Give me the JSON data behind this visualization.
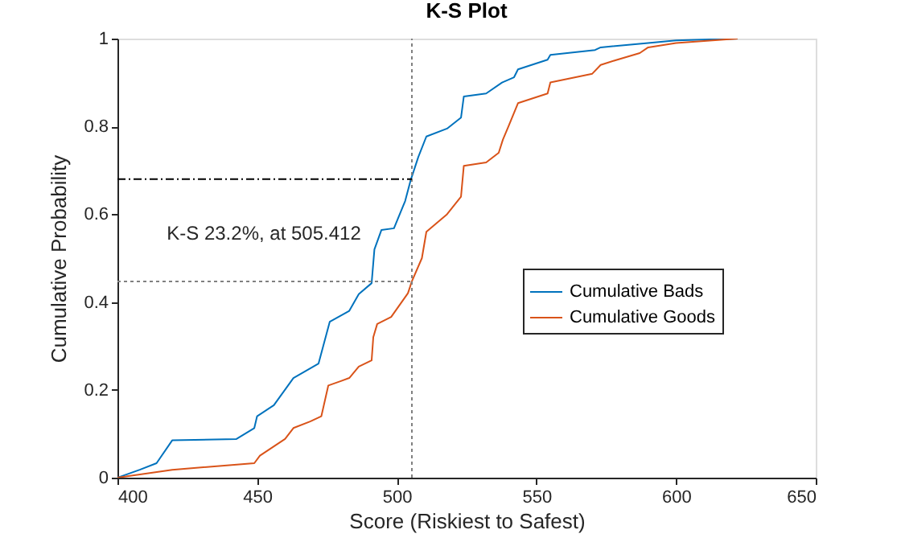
{
  "chart_data": {
    "type": "line",
    "title": "K-S Plot",
    "xlabel": "Score (Riskiest to Safest)",
    "ylabel": "Cumulative Probability",
    "xlim": [
      400,
      650
    ],
    "xticks": [
      400,
      450,
      500,
      550,
      600,
      650
    ],
    "ylim": [
      0,
      1
    ],
    "yticks": [
      0,
      0.2,
      0.4,
      0.6,
      0.8,
      1
    ],
    "grid": false,
    "legend": "right",
    "line_style": "solid",
    "marker": "none",
    "annotations": [
      "K-S 23.2%, at 505.412"
    ],
    "ref_lines": [
      {
        "axis": "x",
        "value": 505.412,
        "color": "#808080",
        "line_style": "dotted"
      },
      {
        "axis": "y",
        "value": 0.68,
        "color": "#000000",
        "line_style": "dashed"
      },
      {
        "axis": "y",
        "value": 0.447,
        "color": "#808080",
        "line_style": "dotted"
      }
    ],
    "series": [
      {
        "name": "Cumulative Bads",
        "color": "#0072bd",
        "x": [
          400,
          408,
          414,
          419.6,
          442.6,
          449,
          450,
          456,
          463,
          472,
          476,
          483,
          486.4,
          491,
          492,
          494.5,
          499,
          503,
          505,
          507.7,
          510.6,
          518,
          523,
          524,
          532,
          537.7,
          542,
          543.4,
          554,
          555,
          571,
          573,
          590,
          600,
          622
        ],
        "values": [
          0,
          0.018,
          0.033,
          0.085,
          0.088,
          0.113,
          0.14,
          0.165,
          0.227,
          0.26,
          0.355,
          0.38,
          0.418,
          0.443,
          0.52,
          0.564,
          0.568,
          0.63,
          0.678,
          0.73,
          0.777,
          0.795,
          0.82,
          0.868,
          0.875,
          0.9,
          0.912,
          0.93,
          0.952,
          0.963,
          0.974,
          0.98,
          0.99,
          0.996,
          1
        ]
      },
      {
        "name": "Cumulative Goods",
        "color": "#d95319",
        "x": [
          400,
          419.6,
          449,
          451,
          460,
          463,
          469,
          473,
          475.5,
          480,
          483,
          486.4,
          491,
          491.6,
          493,
          498,
          504,
          505.4,
          509,
          510.6,
          518,
          523,
          524,
          532,
          536.5,
          538,
          540,
          543.4,
          554,
          555,
          570,
          573,
          578,
          587,
          590,
          600,
          622
        ],
        "values": [
          0,
          0.018,
          0.033,
          0.05,
          0.088,
          0.113,
          0.128,
          0.14,
          0.21,
          0.22,
          0.227,
          0.253,
          0.267,
          0.32,
          0.35,
          0.366,
          0.42,
          0.447,
          0.5,
          0.56,
          0.6,
          0.64,
          0.71,
          0.718,
          0.74,
          0.77,
          0.8,
          0.853,
          0.875,
          0.9,
          0.92,
          0.94,
          0.95,
          0.967,
          0.98,
          0.99,
          1
        ]
      }
    ]
  }
}
